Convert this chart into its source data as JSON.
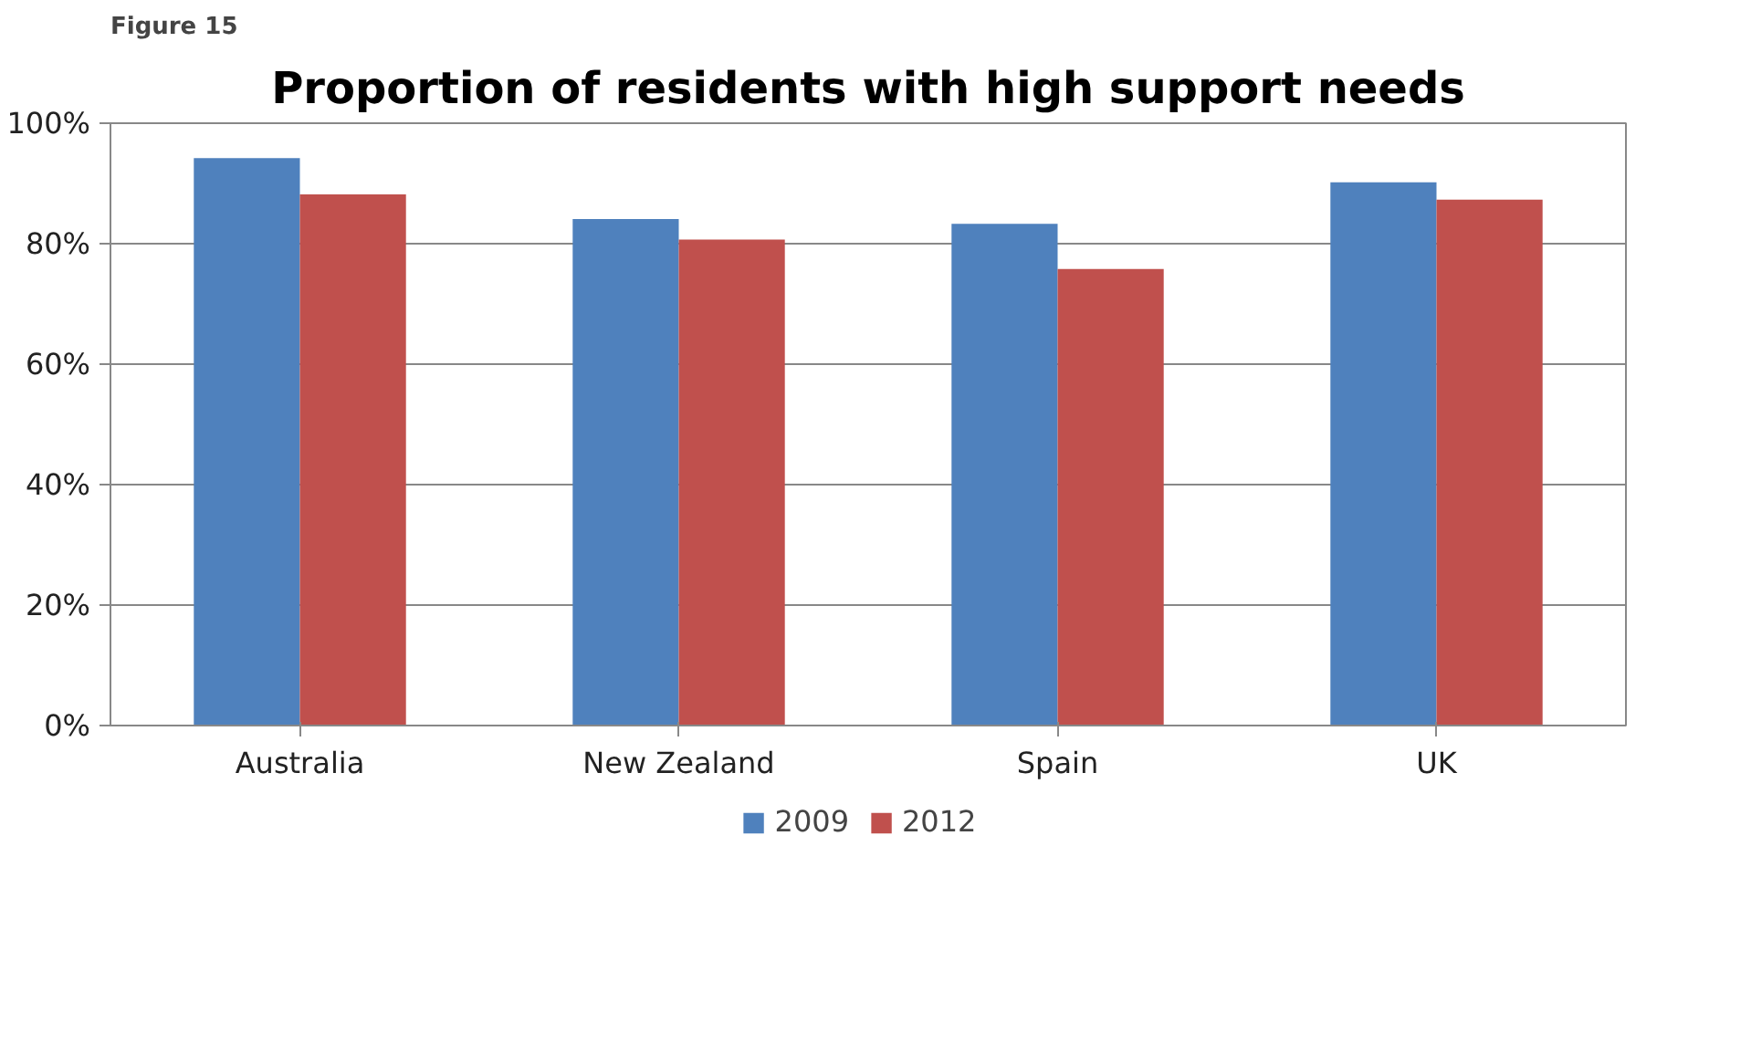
{
  "chart_data": {
    "type": "bar",
    "title": "Proportion of residents with high support needs",
    "annotations": [
      "Figure 15"
    ],
    "categories": [
      "Australia",
      "New Zealand",
      "Spain",
      "UK"
    ],
    "series": [
      {
        "name": "2009",
        "color": "#4f81bd",
        "values": [
          94.2,
          84.1,
          83.3,
          90.2
        ]
      },
      {
        "name": "2012",
        "color": "#c0504d",
        "values": [
          88.2,
          80.7,
          75.8,
          87.3
        ]
      }
    ],
    "ylim": [
      0,
      100
    ],
    "yticks": [
      {
        "value": 0,
        "label": "0%"
      },
      {
        "value": 20,
        "label": "20%"
      },
      {
        "value": 40,
        "label": "40%"
      },
      {
        "value": 60,
        "label": "60%"
      },
      {
        "value": 80,
        "label": "80%"
      },
      {
        "value": 100,
        "label": "100%"
      }
    ],
    "grid": "y",
    "legend": "bottom"
  }
}
